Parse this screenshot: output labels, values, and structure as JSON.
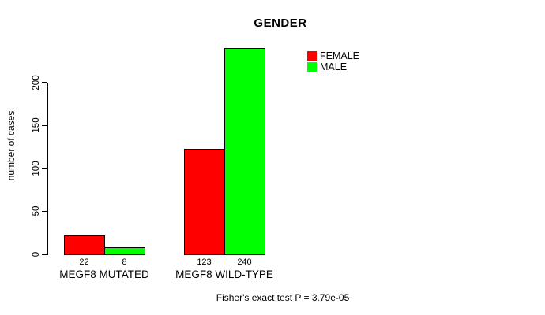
{
  "chart_data": {
    "type": "bar",
    "title": "GENDER",
    "xlabel": "",
    "ylabel": "number of cases",
    "categories": [
      "MEGF8 MUTATED",
      "MEGF8 WILD-TYPE"
    ],
    "series": [
      {
        "name": "FEMALE",
        "color": "#FF0000",
        "values": [
          22,
          123
        ]
      },
      {
        "name": "MALE",
        "color": "#00FF00",
        "values": [
          8,
          240
        ]
      }
    ],
    "yticks": [
      0,
      50,
      100,
      150,
      200
    ],
    "ylim": [
      0,
      245
    ],
    "grid": false,
    "bar_borders": true,
    "show_value_labels": true,
    "legend_position": "top-right",
    "legend_box": false,
    "annotation": "Fisher's exact test P = 3.79e-05",
    "background": "#FFFFFF",
    "axis_color": "#000000"
  }
}
